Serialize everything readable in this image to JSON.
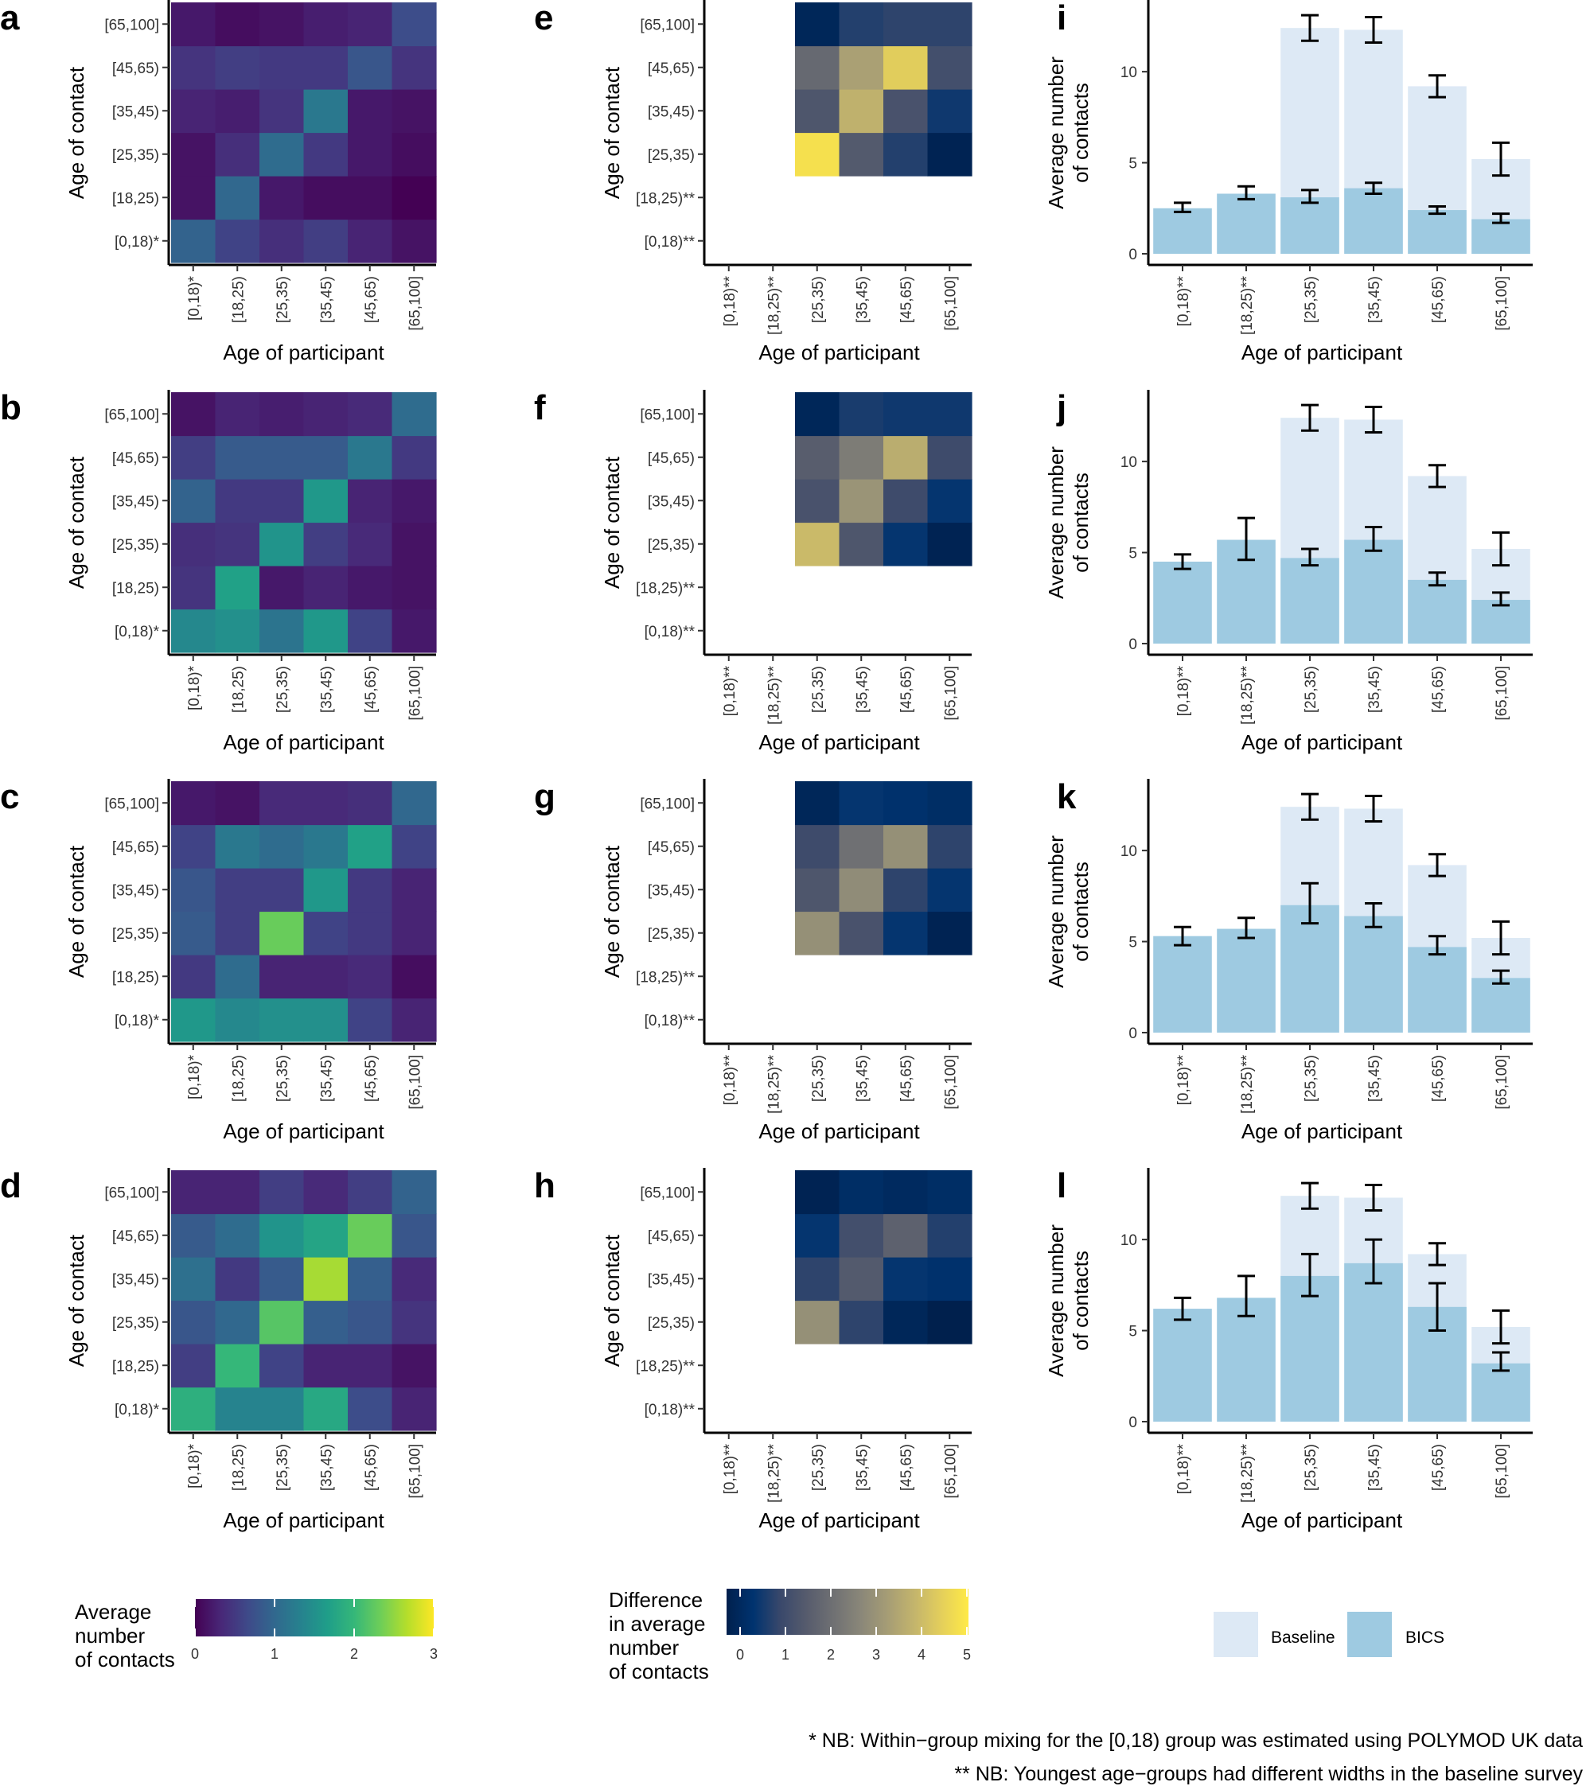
{
  "colors": {
    "baseline_bar": "#dde9f5",
    "bics_bar": "#9ecae1",
    "viridis": [
      "#440154",
      "#482878",
      "#3e4a89",
      "#31688e",
      "#26828e",
      "#1f9e89",
      "#35b779",
      "#6ece58",
      "#b5de2b",
      "#fde725"
    ],
    "cividis": [
      "#00204d",
      "#00336f",
      "#39486b",
      "#575c6d",
      "#707173",
      "#8a8779",
      "#a69d75",
      "#c4b56c",
      "#e4cf5b",
      "#ffea46"
    ]
  },
  "axis_titles": {
    "x": "Age of participant",
    "y_heatmap": "Age of contact",
    "y_bar_line1": "Average number",
    "y_bar_line2": "of contacts"
  },
  "footnotes": [
    "* NB: Within−group mixing for the [0,18) group was estimated using POLYMOD UK data",
    "** NB: Youngest age−groups had different widths in the baseline survey"
  ],
  "legends": {
    "mixing": {
      "title": [
        "Average",
        "number",
        "of contacts"
      ],
      "ticks": [
        "0",
        "1",
        "2",
        "3"
      ]
    },
    "difference": {
      "title": [
        "Difference",
        "in average",
        "number",
        "of contacts"
      ],
      "ticks": [
        "0",
        "1",
        "2",
        "3",
        "4",
        "5"
      ]
    },
    "bars": {
      "baseline": "Baseline",
      "bics": "BICS"
    }
  },
  "chart_data": [
    {
      "panel": "a",
      "type": "heatmap",
      "xlabel": "Age of participant",
      "ylabel": "Age of contact",
      "range": [
        0,
        3
      ],
      "x_ticks": [
        "[0,18)*",
        "[18,25)",
        "[25,35)",
        "[35,45)",
        "[45,65)",
        "[65,100]"
      ],
      "y_ticks": [
        "[0,18)*",
        "[18,25)",
        "[25,35)",
        "[35,45)",
        "[45,65)",
        "[65,100]"
      ],
      "values": [
        [
          0.95,
          0.6,
          0.4,
          0.55,
          0.3,
          0.15
        ],
        [
          0.15,
          1.0,
          0.2,
          0.1,
          0.1,
          0.0
        ],
        [
          0.15,
          0.4,
          1.05,
          0.5,
          0.2,
          0.1
        ],
        [
          0.3,
          0.25,
          0.45,
          1.2,
          0.2,
          0.15
        ],
        [
          0.45,
          0.55,
          0.5,
          0.5,
          0.8,
          0.45
        ],
        [
          0.2,
          0.1,
          0.15,
          0.25,
          0.3,
          0.7
        ]
      ]
    },
    {
      "panel": "b",
      "type": "heatmap",
      "xlabel": "Age of participant",
      "ylabel": "Age of contact",
      "range": [
        0,
        3
      ],
      "x_ticks": [
        "[0,18)*",
        "[18,25)",
        "[25,35)",
        "[35,45)",
        "[45,65)",
        "[65,100]"
      ],
      "y_ticks": [
        "[0,18)*",
        "[18,25)",
        "[25,35)",
        "[35,45)",
        "[45,65)",
        "[65,100]"
      ],
      "values": [
        [
          1.4,
          1.5,
          1.15,
          1.6,
          0.6,
          0.2
        ],
        [
          0.45,
          1.7,
          0.2,
          0.3,
          0.2,
          0.15
        ],
        [
          0.4,
          0.45,
          1.55,
          0.55,
          0.35,
          0.15
        ],
        [
          0.95,
          0.5,
          0.5,
          1.6,
          0.3,
          0.2
        ],
        [
          0.55,
          0.85,
          0.85,
          0.85,
          1.2,
          0.5
        ],
        [
          0.15,
          0.3,
          0.25,
          0.3,
          0.35,
          1.05
        ]
      ]
    },
    {
      "panel": "c",
      "type": "heatmap",
      "xlabel": "Age of participant",
      "ylabel": "Age of contact",
      "range": [
        0,
        3
      ],
      "x_ticks": [
        "[0,18)*",
        "[18,25)",
        "[25,35)",
        "[35,45)",
        "[45,65)",
        "[65,100]"
      ],
      "y_ticks": [
        "[0,18)*",
        "[18,25)",
        "[25,35)",
        "[35,45)",
        "[45,65)",
        "[65,100]"
      ],
      "values": [
        [
          1.6,
          1.4,
          1.5,
          1.5,
          0.6,
          0.3
        ],
        [
          0.5,
          1.05,
          0.3,
          0.3,
          0.35,
          0.1
        ],
        [
          0.85,
          0.55,
          2.3,
          0.6,
          0.5,
          0.3
        ],
        [
          0.8,
          0.55,
          0.55,
          1.6,
          0.5,
          0.3
        ],
        [
          0.6,
          1.2,
          1.05,
          1.2,
          1.7,
          0.6
        ],
        [
          0.2,
          0.15,
          0.35,
          0.35,
          0.4,
          1.0
        ]
      ]
    },
    {
      "panel": "d",
      "type": "heatmap",
      "xlabel": "Age of participant",
      "ylabel": "Age of contact",
      "range": [
        0,
        3
      ],
      "x_ticks": [
        "[0,18)*",
        "[18,25)",
        "[25,35)",
        "[35,45)",
        "[45,65)",
        "[65,100]"
      ],
      "y_ticks": [
        "[0,18)*",
        "[18,25)",
        "[25,35)",
        "[35,45)",
        "[45,65)",
        "[65,100]"
      ],
      "values": [
        [
          1.9,
          1.35,
          1.35,
          1.8,
          0.7,
          0.3
        ],
        [
          0.55,
          2.0,
          0.6,
          0.3,
          0.3,
          0.15
        ],
        [
          0.8,
          1.0,
          2.2,
          0.9,
          0.8,
          0.45
        ],
        [
          1.1,
          0.5,
          0.85,
          2.6,
          0.9,
          0.35
        ],
        [
          0.85,
          1.05,
          1.55,
          1.75,
          2.3,
          0.8
        ],
        [
          0.3,
          0.3,
          0.55,
          0.35,
          0.55,
          0.95
        ]
      ]
    },
    {
      "panel": "e",
      "type": "heatmap",
      "xlabel": "Age of participant",
      "ylabel": "Age of contact",
      "range": [
        0,
        5
      ],
      "x_ticks": [
        "[0,18)**",
        "[18,25)**",
        "[25,35)",
        "[35,45)",
        "[45,65)",
        "[65,100]"
      ],
      "y_ticks": [
        "[0,18)**",
        "[18,25)**",
        "[25,35)",
        "[35,45)",
        "[45,65)",
        "[65,100]"
      ],
      "values": [
        [
          null,
          null,
          null,
          null,
          null,
          null
        ],
        [
          null,
          null,
          null,
          null,
          null,
          null
        ],
        [
          null,
          null,
          4.8,
          1.6,
          0.9,
          0.1
        ],
        [
          null,
          null,
          1.5,
          3.8,
          1.4,
          0.7
        ],
        [
          null,
          null,
          2.0,
          3.4,
          4.4,
          1.3
        ],
        [
          null,
          null,
          0.2,
          0.9,
          1.0,
          1.0
        ]
      ]
    },
    {
      "panel": "f",
      "type": "heatmap",
      "xlabel": "Age of participant",
      "ylabel": "Age of contact",
      "range": [
        0,
        5
      ],
      "x_ticks": [
        "[0,18)**",
        "[18,25)**",
        "[25,35)",
        "[35,45)",
        "[45,65)",
        "[65,100]"
      ],
      "y_ticks": [
        "[0,18)**",
        "[18,25)**",
        "[25,35)",
        "[35,45)",
        "[45,65)",
        "[65,100]"
      ],
      "values": [
        [
          null,
          null,
          null,
          null,
          null,
          null
        ],
        [
          null,
          null,
          null,
          null,
          null,
          null
        ],
        [
          null,
          null,
          4.0,
          1.5,
          0.6,
          0.1
        ],
        [
          null,
          null,
          1.4,
          3.1,
          1.2,
          0.6
        ],
        [
          null,
          null,
          1.7,
          2.5,
          3.7,
          1.2
        ],
        [
          null,
          null,
          0.2,
          0.8,
          0.7,
          0.7
        ]
      ]
    },
    {
      "panel": "g",
      "type": "heatmap",
      "xlabel": "Age of participant",
      "ylabel": "Age of contact",
      "range": [
        0,
        5
      ],
      "x_ticks": [
        "[0,18)**",
        "[18,25)**",
        "[25,35)",
        "[35,45)",
        "[45,65)",
        "[65,100]"
      ],
      "y_ticks": [
        "[0,18)**",
        "[18,25)**",
        "[25,35)",
        "[35,45)",
        "[45,65)",
        "[65,100]"
      ],
      "values": [
        [
          null,
          null,
          null,
          null,
          null,
          null
        ],
        [
          null,
          null,
          null,
          null,
          null,
          null
        ],
        [
          null,
          null,
          3.0,
          1.4,
          0.6,
          0.1
        ],
        [
          null,
          null,
          1.5,
          2.9,
          1.0,
          0.6
        ],
        [
          null,
          null,
          1.2,
          2.2,
          3.0,
          1.0
        ],
        [
          null,
          null,
          0.2,
          0.6,
          0.5,
          0.4
        ]
      ]
    },
    {
      "panel": "h",
      "type": "heatmap",
      "xlabel": "Age of participant",
      "ylabel": "Age of contact",
      "range": [
        0,
        5
      ],
      "x_ticks": [
        "[0,18)**",
        "[18,25)**",
        "[25,35)",
        "[35,45)",
        "[45,65)",
        "[65,100]"
      ],
      "y_ticks": [
        "[0,18)**",
        "[18,25)**",
        "[25,35)",
        "[35,45)",
        "[45,65)",
        "[65,100]"
      ],
      "values": [
        [
          null,
          null,
          null,
          null,
          null,
          null
        ],
        [
          null,
          null,
          null,
          null,
          null,
          null
        ],
        [
          null,
          null,
          3.0,
          1.0,
          0.2,
          0.0
        ],
        [
          null,
          null,
          1.0,
          1.6,
          0.6,
          0.5
        ],
        [
          null,
          null,
          0.6,
          1.3,
          1.8,
          0.9
        ],
        [
          null,
          null,
          0.1,
          0.4,
          0.3,
          0.4
        ]
      ]
    },
    {
      "panel": "i",
      "type": "bar",
      "xlabel": "Age of participant",
      "ylabel": "Average number of contacts",
      "ylim": [
        0,
        13.5
      ],
      "y_ticks": [
        0,
        5,
        10
      ],
      "categories": [
        "[0,18)**",
        "[18,25)**",
        "[25,35)",
        "[35,45)",
        "[45,65)",
        "[65,100]"
      ],
      "series": [
        {
          "name": "Baseline",
          "values": [
            null,
            null,
            12.4,
            12.3,
            9.2,
            5.2
          ],
          "err_low": [
            null,
            null,
            11.7,
            11.6,
            8.6,
            4.3
          ],
          "err_high": [
            null,
            null,
            13.1,
            13.0,
            9.8,
            6.1
          ]
        },
        {
          "name": "BICS",
          "values": [
            2.5,
            3.3,
            3.1,
            3.6,
            2.4,
            1.9
          ],
          "err_low": [
            2.3,
            3.0,
            2.8,
            3.3,
            2.2,
            1.7
          ],
          "err_high": [
            2.8,
            3.7,
            3.5,
            3.9,
            2.6,
            2.2
          ]
        }
      ]
    },
    {
      "panel": "j",
      "type": "bar",
      "xlabel": "Age of participant",
      "ylabel": "Average number of contacts",
      "ylim": [
        0,
        13.5
      ],
      "y_ticks": [
        0,
        5,
        10
      ],
      "categories": [
        "[0,18)**",
        "[18,25)**",
        "[25,35)",
        "[35,45)",
        "[45,65)",
        "[65,100]"
      ],
      "series": [
        {
          "name": "Baseline",
          "values": [
            null,
            null,
            12.4,
            12.3,
            9.2,
            5.2
          ],
          "err_low": [
            null,
            null,
            11.7,
            11.6,
            8.6,
            4.3
          ],
          "err_high": [
            null,
            null,
            13.1,
            13.0,
            9.8,
            6.1
          ]
        },
        {
          "name": "BICS",
          "values": [
            4.5,
            5.7,
            4.7,
            5.7,
            3.5,
            2.4
          ],
          "err_low": [
            4.1,
            4.6,
            4.3,
            5.1,
            3.2,
            2.1
          ],
          "err_high": [
            4.9,
            6.9,
            5.2,
            6.4,
            3.9,
            2.8
          ]
        }
      ]
    },
    {
      "panel": "k",
      "type": "bar",
      "xlabel": "Age of participant",
      "ylabel": "Average number of contacts",
      "ylim": [
        0,
        13.5
      ],
      "y_ticks": [
        0,
        5,
        10
      ],
      "categories": [
        "[0,18)**",
        "[18,25)**",
        "[25,35)",
        "[35,45)",
        "[45,65)",
        "[65,100]"
      ],
      "series": [
        {
          "name": "Baseline",
          "values": [
            null,
            null,
            12.4,
            12.3,
            9.2,
            5.2
          ],
          "err_low": [
            null,
            null,
            11.7,
            11.6,
            8.6,
            4.3
          ],
          "err_high": [
            null,
            null,
            13.1,
            13.0,
            9.8,
            6.1
          ]
        },
        {
          "name": "BICS",
          "values": [
            5.3,
            5.7,
            7.0,
            6.4,
            4.7,
            3.0
          ],
          "err_low": [
            4.8,
            5.2,
            6.0,
            5.8,
            4.3,
            2.7
          ],
          "err_high": [
            5.8,
            6.3,
            8.2,
            7.1,
            5.3,
            3.4
          ]
        }
      ]
    },
    {
      "panel": "l",
      "type": "bar",
      "xlabel": "Age of participant",
      "ylabel": "Average number of contacts",
      "ylim": [
        0,
        13.5
      ],
      "y_ticks": [
        0,
        5,
        10
      ],
      "categories": [
        "[0,18)**",
        "[18,25)**",
        "[25,35)",
        "[35,45)",
        "[45,65)",
        "[65,100]"
      ],
      "series": [
        {
          "name": "Baseline",
          "values": [
            null,
            null,
            12.4,
            12.3,
            9.2,
            5.2
          ],
          "err_low": [
            null,
            null,
            11.7,
            11.6,
            8.6,
            4.3
          ],
          "err_high": [
            null,
            null,
            13.1,
            13.0,
            9.8,
            6.1
          ]
        },
        {
          "name": "BICS",
          "values": [
            6.2,
            6.8,
            8.0,
            8.7,
            6.3,
            3.2
          ],
          "err_low": [
            5.6,
            5.8,
            6.9,
            7.6,
            5.0,
            2.8
          ],
          "err_high": [
            6.8,
            8.0,
            9.2,
            10.0,
            7.6,
            3.8
          ]
        }
      ]
    }
  ]
}
